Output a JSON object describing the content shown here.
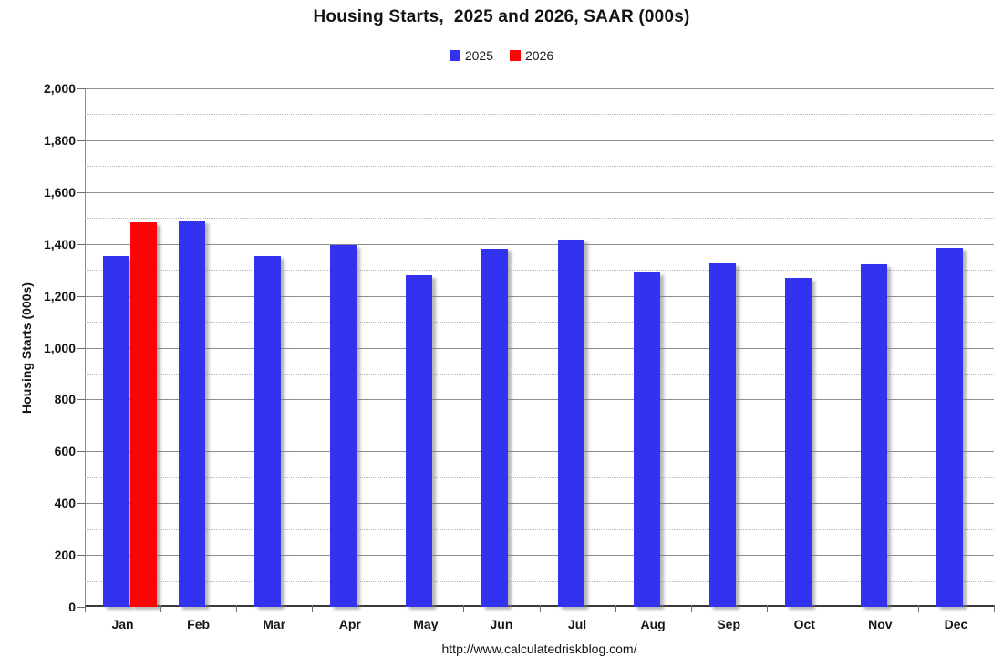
{
  "chart_data": {
    "type": "bar",
    "title": "Housing Starts,  2025 and 2026, SAAR (000s)",
    "ylabel": "Housing Starts (000s)",
    "xlabel": "",
    "categories": [
      "Jan",
      "Feb",
      "Mar",
      "Apr",
      "May",
      "Jun",
      "Jul",
      "Aug",
      "Sep",
      "Oct",
      "Nov",
      "Dec"
    ],
    "series": [
      {
        "name": "2025",
        "color": "#3232F0",
        "values": [
          1355,
          1490,
          1355,
          1395,
          1280,
          1380,
          1415,
          1290,
          1325,
          1270,
          1320,
          1385
        ]
      },
      {
        "name": "2026",
        "color": "#FA0505",
        "values": [
          1485,
          null,
          null,
          null,
          null,
          null,
          null,
          null,
          null,
          null,
          null,
          null
        ]
      }
    ],
    "ylim": [
      0,
      2000
    ],
    "ytick_step": 200,
    "minor_gridline_step": 100,
    "grid": true,
    "legend_position": "top-center",
    "footnote": "http://www.calculatedriskblog.com/"
  },
  "colors": {
    "series_2025": "#3232F0",
    "series_2026": "#FA0505",
    "gridline_major": "#8c8c8c",
    "gridline_minor": "#b4b4b4",
    "axis": "#3a3a3a",
    "text": "#141414"
  }
}
